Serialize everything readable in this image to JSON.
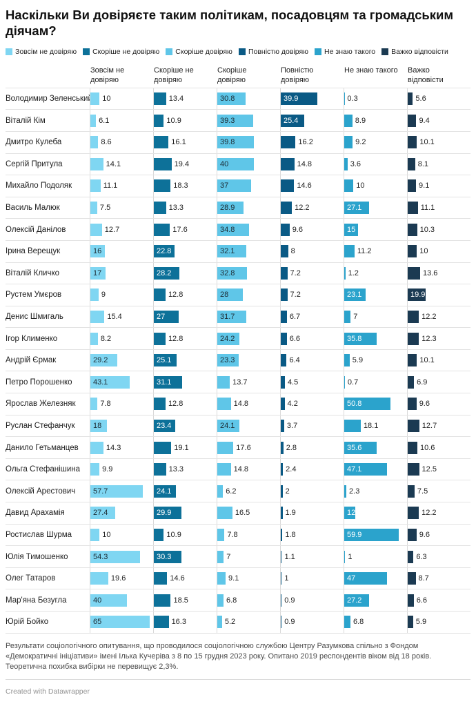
{
  "title": "Наскільки Ви довіряєте таким політикам, посадовцям та громадським діячам?",
  "notes": "Результати соціологічного опитування, що проводилося соціологічною службою Центру Разумкова спільно з Фондом «Демократичні ініціативи» імені Ілька Кучеріва з 8 по 15 грудня 2023 року. Опитано 2019 респондентів віком від 18 років. Теоретична похибка вибірки не перевищує 2,3%.",
  "credit": "Created with Datawrapper",
  "chart_data": {
    "type": "bar",
    "variant": "split-bars",
    "value_unit": "%",
    "xmax": 65,
    "legend_position": "top",
    "grid": false,
    "columns": [
      {
        "label": "Зовсім не довіряю",
        "color": "#7fd6f2",
        "inside_text_color": "#1c2b33"
      },
      {
        "label": "Скоріше не довіряю",
        "color": "#0d7199",
        "inside_text_color": "#ffffff"
      },
      {
        "label": "Скоріше довіряю",
        "color": "#5fc6e8",
        "inside_text_color": "#1c2b33"
      },
      {
        "label": "Повністю довіряю",
        "color": "#0a5a85",
        "inside_text_color": "#ffffff"
      },
      {
        "label": "Не знаю такого",
        "color": "#2ba3cc",
        "inside_text_color": "#ffffff"
      },
      {
        "label": "Важко відповісти",
        "color": "#1b3a52",
        "inside_text_color": "#ffffff"
      }
    ],
    "rows": [
      {
        "name": "Володимир Зеленський",
        "values": [
          10,
          13.4,
          30.8,
          39.9,
          0.3,
          5.6
        ]
      },
      {
        "name": "Віталій Кім",
        "values": [
          6.1,
          10.9,
          39.3,
          25.4,
          8.9,
          9.4
        ]
      },
      {
        "name": "Дмитро Кулеба",
        "values": [
          8.6,
          16.1,
          39.8,
          16.2,
          9.2,
          10.1
        ]
      },
      {
        "name": "Сергій Притула",
        "values": [
          14.1,
          19.4,
          40,
          14.8,
          3.6,
          8.1
        ]
      },
      {
        "name": "Михайло Подоляк",
        "values": [
          11.1,
          18.3,
          37,
          14.6,
          10,
          9.1
        ]
      },
      {
        "name": "Василь Малюк",
        "values": [
          7.5,
          13.3,
          28.9,
          12.2,
          27.1,
          11.1
        ]
      },
      {
        "name": "Олексій Данілов",
        "values": [
          12.7,
          17.6,
          34.8,
          9.6,
          15,
          10.3
        ]
      },
      {
        "name": "Ірина Верещук",
        "values": [
          16,
          22.8,
          32.1,
          8,
          11.2,
          10
        ]
      },
      {
        "name": "Віталій Кличко",
        "values": [
          17,
          28.2,
          32.8,
          7.2,
          1.2,
          13.6
        ]
      },
      {
        "name": "Рустем Умєров",
        "values": [
          9,
          12.8,
          28,
          7.2,
          23.1,
          19.9
        ]
      },
      {
        "name": "Денис Шмигаль",
        "values": [
          15.4,
          27,
          31.7,
          6.7,
          7,
          12.2
        ]
      },
      {
        "name": "Ігор Клименко",
        "values": [
          8.2,
          12.8,
          24.2,
          6.6,
          35.8,
          12.3
        ]
      },
      {
        "name": "Андрій Єрмак",
        "values": [
          29.2,
          25.1,
          23.3,
          6.4,
          5.9,
          10.1
        ]
      },
      {
        "name": "Петро Порошенко",
        "values": [
          43.1,
          31.1,
          13.7,
          4.5,
          0.7,
          6.9
        ]
      },
      {
        "name": "Ярослав Железняк",
        "values": [
          7.8,
          12.8,
          14.8,
          4.2,
          50.8,
          9.6
        ]
      },
      {
        "name": "Руслан Стефанчук",
        "values": [
          18,
          23.4,
          24.1,
          3.7,
          18.1,
          12.7
        ]
      },
      {
        "name": "Данило Гетьманцев",
        "values": [
          14.3,
          19.1,
          17.6,
          2.8,
          35.6,
          10.6
        ]
      },
      {
        "name": "Ольга Стефанішина",
        "values": [
          9.9,
          13.3,
          14.8,
          2.4,
          47.1,
          12.5
        ]
      },
      {
        "name": "Олексій Арестович",
        "values": [
          57.7,
          24.1,
          6.2,
          2,
          2.3,
          7.5
        ]
      },
      {
        "name": "Давид Арахамія",
        "values": [
          27.4,
          29.9,
          16.5,
          1.9,
          12,
          12.2
        ]
      },
      {
        "name": "Ростислав Шурма",
        "values": [
          10,
          10.9,
          7.8,
          1.8,
          59.9,
          9.6
        ]
      },
      {
        "name": "Юлія Тимошенко",
        "values": [
          54.3,
          30.3,
          7,
          1.1,
          1,
          6.3
        ]
      },
      {
        "name": "Олег Татаров",
        "values": [
          19.6,
          14.6,
          9.1,
          1,
          47,
          8.7
        ]
      },
      {
        "name": "Мар'яна Безугла",
        "values": [
          40,
          18.5,
          6.8,
          0.9,
          27.2,
          6.6
        ]
      },
      {
        "name": "Юрій Бойко",
        "values": [
          65,
          16.3,
          5.2,
          0.9,
          6.8,
          5.9
        ]
      }
    ]
  }
}
